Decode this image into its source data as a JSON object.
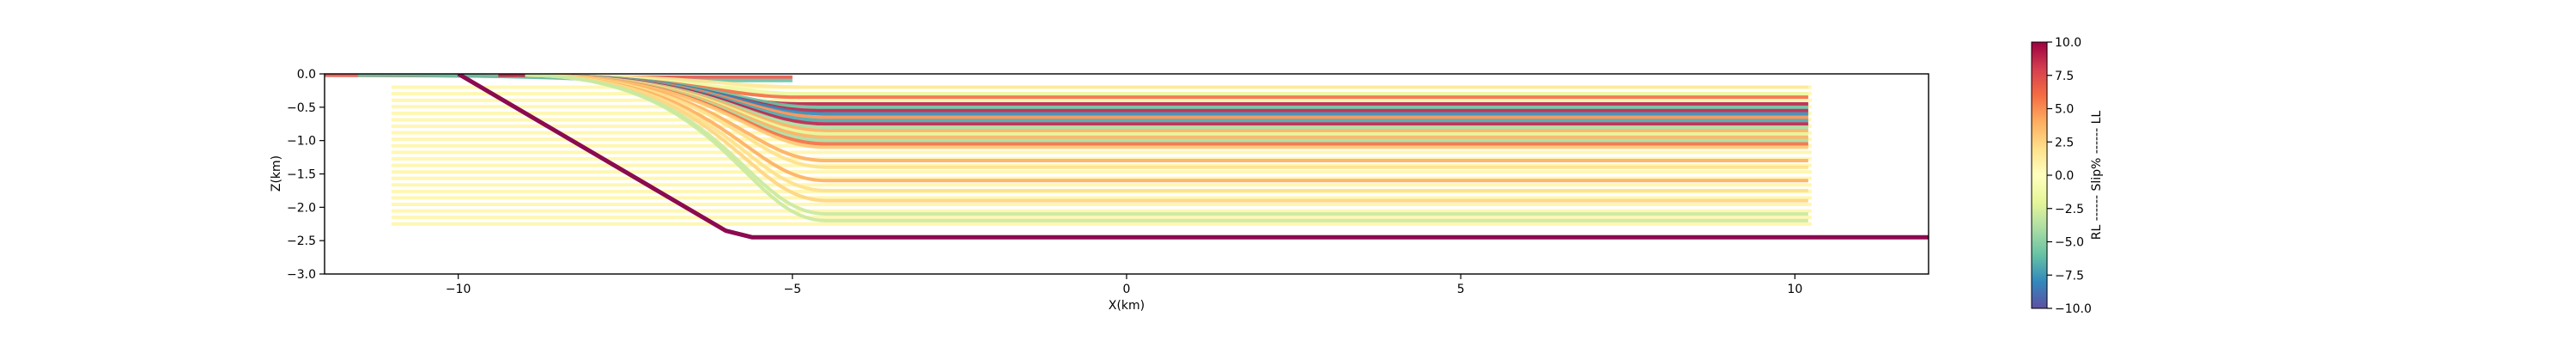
{
  "chart_data": {
    "type": "line",
    "xlabel": "X(km)",
    "ylabel": "Z(km)",
    "xlim": [
      -12,
      12
    ],
    "ylim": [
      -3.0,
      0.0
    ],
    "xticks": [
      -10,
      -5,
      0,
      5,
      10
    ],
    "xtick_labels": [
      "−10",
      "−5",
      "0",
      "5",
      "10"
    ],
    "yticks": [
      0.0,
      -0.5,
      -1.0,
      -1.5,
      -2.0,
      -2.5,
      -3.0
    ],
    "ytick_labels": [
      "0.0",
      "−0.5",
      "−1.0",
      "−1.5",
      "−2.0",
      "−2.5",
      "−3.0"
    ],
    "grid": false,
    "fault": {
      "x": [
        -10.0,
        -6.0,
        -5.6,
        12.0
      ],
      "z": [
        0.0,
        -2.35,
        -2.45,
        -2.45
      ],
      "color": "#8b0a50"
    },
    "layers": {
      "x_start": -11.0,
      "x_end": 10.25,
      "z_top": -0.2,
      "z_bottom": -2.25,
      "count": 22
    },
    "slip_bands": [
      {
        "x": [
          -8.0,
          -5.0
        ],
        "z": -0.05,
        "value": 7
      },
      {
        "x": [
          -7.0,
          -5.0
        ],
        "z": -0.1,
        "value": -6
      },
      {
        "x": [
          -4.8,
          10.2
        ],
        "z": -0.2,
        "value": 1.5
      },
      {
        "x": [
          -4.8,
          10.2
        ],
        "z": -0.3,
        "value": -1.5
      },
      {
        "x": [
          -4.9,
          10.2
        ],
        "z": -0.35,
        "value": 6
      },
      {
        "x": [
          -4.9,
          10.2
        ],
        "z": -0.45,
        "value": 9
      },
      {
        "x": [
          -4.6,
          10.2
        ],
        "z": -0.5,
        "value": -6
      },
      {
        "x": [
          -4.6,
          10.2
        ],
        "z": -0.55,
        "value": 9
      },
      {
        "x": [
          -4.5,
          10.2
        ],
        "z": -0.6,
        "value": -8
      },
      {
        "x": [
          -4.5,
          10.2
        ],
        "z": -0.65,
        "value": 5
      },
      {
        "x": [
          -4.5,
          10.2
        ],
        "z": -0.7,
        "value": -7
      },
      {
        "x": [
          -4.5,
          10.2
        ],
        "z": -0.75,
        "value": 9
      },
      {
        "x": [
          -4.5,
          10.2
        ],
        "z": -0.8,
        "value": -4
      },
      {
        "x": [
          -4.5,
          10.2
        ],
        "z": -0.85,
        "value": 4
      },
      {
        "x": [
          -4.5,
          10.2
        ],
        "z": -0.9,
        "value": -2
      },
      {
        "x": [
          -4.5,
          10.2
        ],
        "z": -0.95,
        "value": 4
      },
      {
        "x": [
          -4.5,
          10.2
        ],
        "z": -1.0,
        "value": -4
      },
      {
        "x": [
          -4.5,
          10.2
        ],
        "z": -1.05,
        "value": 6
      },
      {
        "x": [
          -4.5,
          10.2
        ],
        "z": -1.1,
        "value": 3
      },
      {
        "x": [
          -4.5,
          10.2
        ],
        "z": -1.3,
        "value": 4
      },
      {
        "x": [
          -4.5,
          10.2
        ],
        "z": -1.4,
        "value": 2
      },
      {
        "x": [
          -4.5,
          10.2
        ],
        "z": -1.6,
        "value": 4
      },
      {
        "x": [
          -4.5,
          10.2
        ],
        "z": -1.75,
        "value": 2
      },
      {
        "x": [
          -4.5,
          10.2
        ],
        "z": -1.9,
        "value": 2.5
      },
      {
        "x": [
          -4.5,
          10.2
        ],
        "z": -2.1,
        "value": -3
      },
      {
        "x": [
          -4.5,
          10.2
        ],
        "z": -2.2,
        "value": -3
      }
    ],
    "colorbar": {
      "label": "RL ------ Slip% ------ LL",
      "min": -10.0,
      "max": 10.0,
      "ticks": [
        10.0,
        7.5,
        5.0,
        2.5,
        0.0,
        -2.5,
        -5.0,
        -7.5,
        -10.0
      ],
      "tick_labels": [
        "10.0",
        "7.5",
        "5.0",
        "2.5",
        "0.0",
        "−2.5",
        "−5.0",
        "−7.5",
        "−10.0"
      ],
      "colormap": "Spectral_r",
      "colors": [
        "#5e4fa2",
        "#3288bd",
        "#66c2a5",
        "#abdda4",
        "#e6f598",
        "#ffffbf",
        "#fee08b",
        "#fdae61",
        "#f46d43",
        "#d53e4f",
        "#9e0142"
      ]
    }
  }
}
